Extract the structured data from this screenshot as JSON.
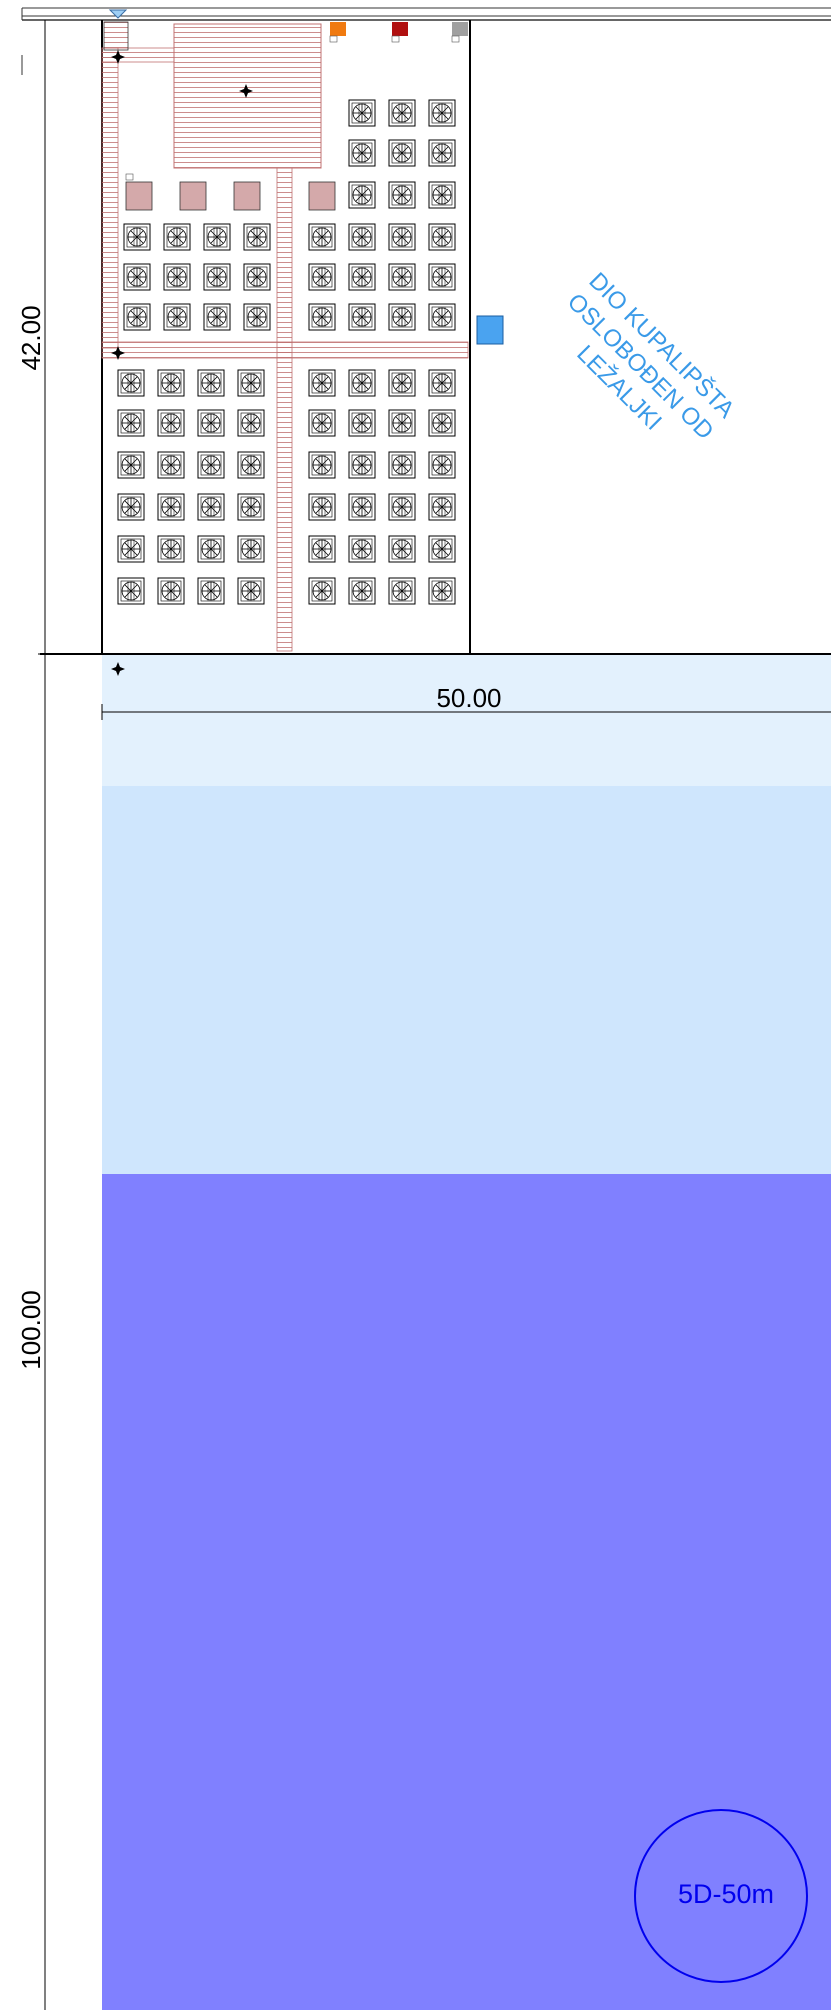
{
  "dimensions": {
    "site_depth": "42.00",
    "sea_depth": "100.00",
    "width": "50.00"
  },
  "zone_label": {
    "lines": [
      "DIO KUPALIPŠTA",
      "OSLOBOĐEN OD",
      "LEŽALJKI"
    ],
    "color": "#3a9ae8"
  },
  "buoy_label": "5D-50m",
  "colors": {
    "shallow_water": "#e3f1fd",
    "mid_water": "#cfe6fd",
    "deep_water": "#8080ff",
    "boardwalk": "#c07070",
    "umbrella_pad": "#d4a9aa",
    "blue_kiosk": "#4aa3f0",
    "bin_orange": "#f07a10",
    "bin_red": "#b01010",
    "bin_grey": "#a0a0a0",
    "buoy": "#0000ee"
  },
  "legend_icons": [
    "compass-star-icon",
    "sun-lounger-icon",
    "bin-icon",
    "buoy-circle"
  ]
}
